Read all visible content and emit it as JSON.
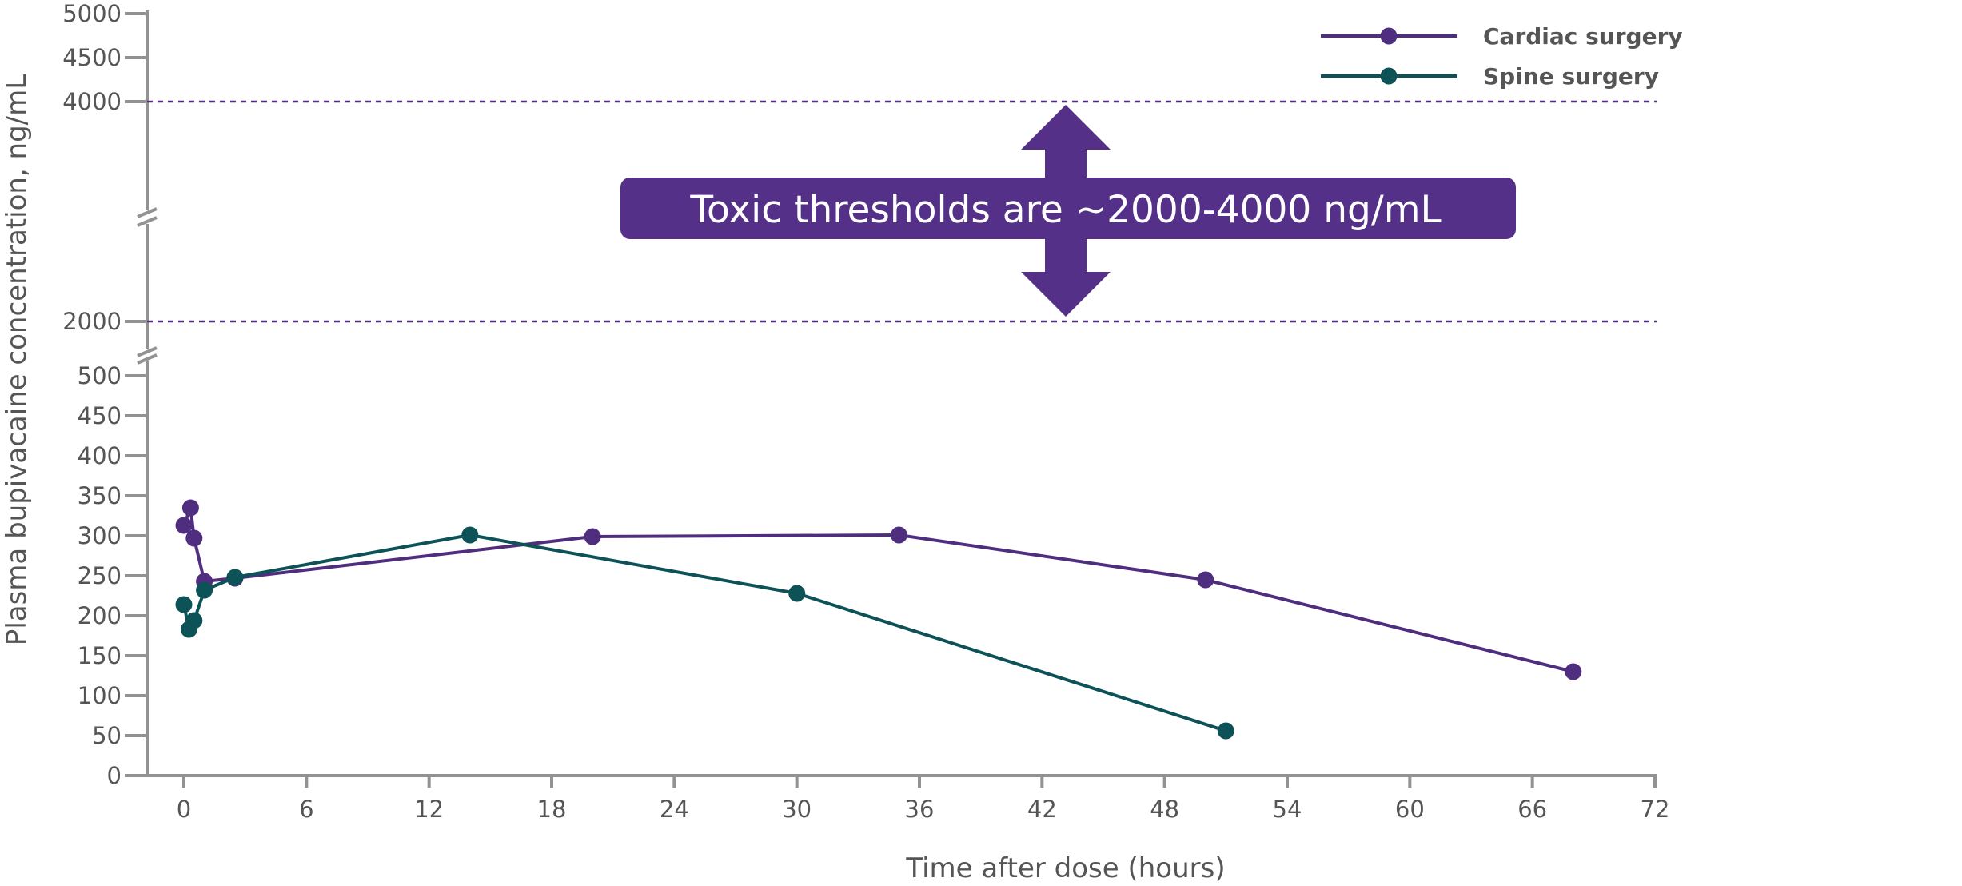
{
  "chart_data": {
    "type": "line",
    "xlabel": "Time after dose (hours)",
    "ylabel": "Plasma bupivacaine concentration, ng/mL",
    "x_ticks": [
      0,
      6,
      12,
      18,
      24,
      30,
      36,
      42,
      48,
      54,
      60,
      66,
      72
    ],
    "xlim": [
      0,
      72
    ],
    "y_ticks_lower": [
      0,
      50,
      100,
      150,
      200,
      250,
      300,
      350,
      400,
      450,
      500
    ],
    "y_ticks_upper": [
      2000,
      4000,
      4500,
      5000
    ],
    "y_axis_breaks": [
      [
        500,
        2000
      ],
      [
        2000,
        4000
      ]
    ],
    "grid": false,
    "legend_position": "top-right",
    "reference_lines": [
      {
        "value": 4000,
        "style": "dashed"
      },
      {
        "value": 2000,
        "style": "dashed"
      }
    ],
    "annotation": "Toxic thresholds are ~2000-4000 ng/mL",
    "series": [
      {
        "name": "Cardiac surgery",
        "color": "#4f2d7f",
        "points": [
          [
            0,
            313
          ],
          [
            0.33,
            335
          ],
          [
            0.5,
            297
          ],
          [
            1,
            243
          ],
          [
            2.5,
            247
          ],
          [
            20,
            299
          ],
          [
            35,
            301
          ],
          [
            50,
            245
          ],
          [
            68,
            130
          ]
        ]
      },
      {
        "name": "Spine surgery",
        "color": "#0c5257",
        "points": [
          [
            0,
            214
          ],
          [
            0.25,
            183
          ],
          [
            0.5,
            194
          ],
          [
            1,
            232
          ],
          [
            2.5,
            248
          ],
          [
            14,
            301
          ],
          [
            30,
            228
          ],
          [
            51,
            56
          ]
        ]
      }
    ]
  },
  "colors": {
    "axis": "#929292",
    "text": "#555555",
    "callout": "#553088",
    "threshold": "#4f2d7f"
  }
}
